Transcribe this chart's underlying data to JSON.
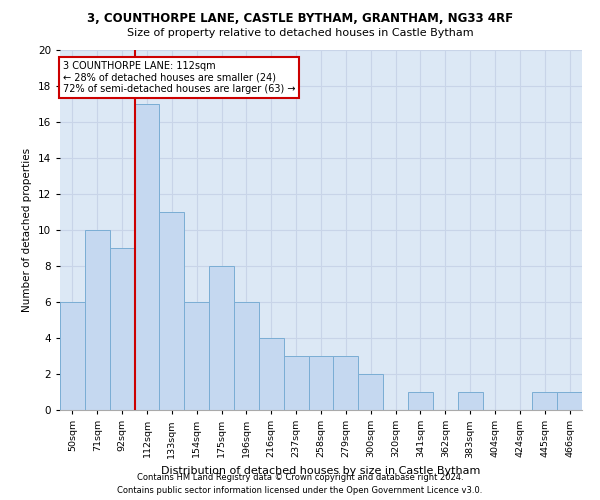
{
  "title1": "3, COUNTHORPE LANE, CASTLE BYTHAM, GRANTHAM, NG33 4RF",
  "title2": "Size of property relative to detached houses in Castle Bytham",
  "xlabel": "Distribution of detached houses by size in Castle Bytham",
  "ylabel": "Number of detached properties",
  "footnote1": "Contains HM Land Registry data © Crown copyright and database right 2024.",
  "footnote2": "Contains public sector information licensed under the Open Government Licence v3.0.",
  "annotation_line1": "3 COUNTHORPE LANE: 112sqm",
  "annotation_line2": "← 28% of detached houses are smaller (24)",
  "annotation_line3": "72% of semi-detached houses are larger (63) →",
  "bar_labels": [
    "50sqm",
    "71sqm",
    "92sqm",
    "112sqm",
    "133sqm",
    "154sqm",
    "175sqm",
    "196sqm",
    "216sqm",
    "237sqm",
    "258sqm",
    "279sqm",
    "300sqm",
    "320sqm",
    "341sqm",
    "362sqm",
    "383sqm",
    "404sqm",
    "424sqm",
    "445sqm",
    "466sqm"
  ],
  "bar_values": [
    6,
    10,
    9,
    17,
    11,
    6,
    8,
    6,
    4,
    3,
    3,
    3,
    2,
    0,
    1,
    0,
    1,
    0,
    0,
    1,
    1
  ],
  "bar_color": "#c5d8f0",
  "bar_edge_color": "#7aadd4",
  "redline_index": 3,
  "annotation_box_color": "#ffffff",
  "annotation_box_edge_color": "#cc0000",
  "redline_color": "#cc0000",
  "grid_color": "#c8d4e8",
  "axes_bg_color": "#dce8f5",
  "background_color": "#ffffff",
  "ylim": [
    0,
    20
  ],
  "yticks": [
    0,
    2,
    4,
    6,
    8,
    10,
    12,
    14,
    16,
    18,
    20
  ]
}
